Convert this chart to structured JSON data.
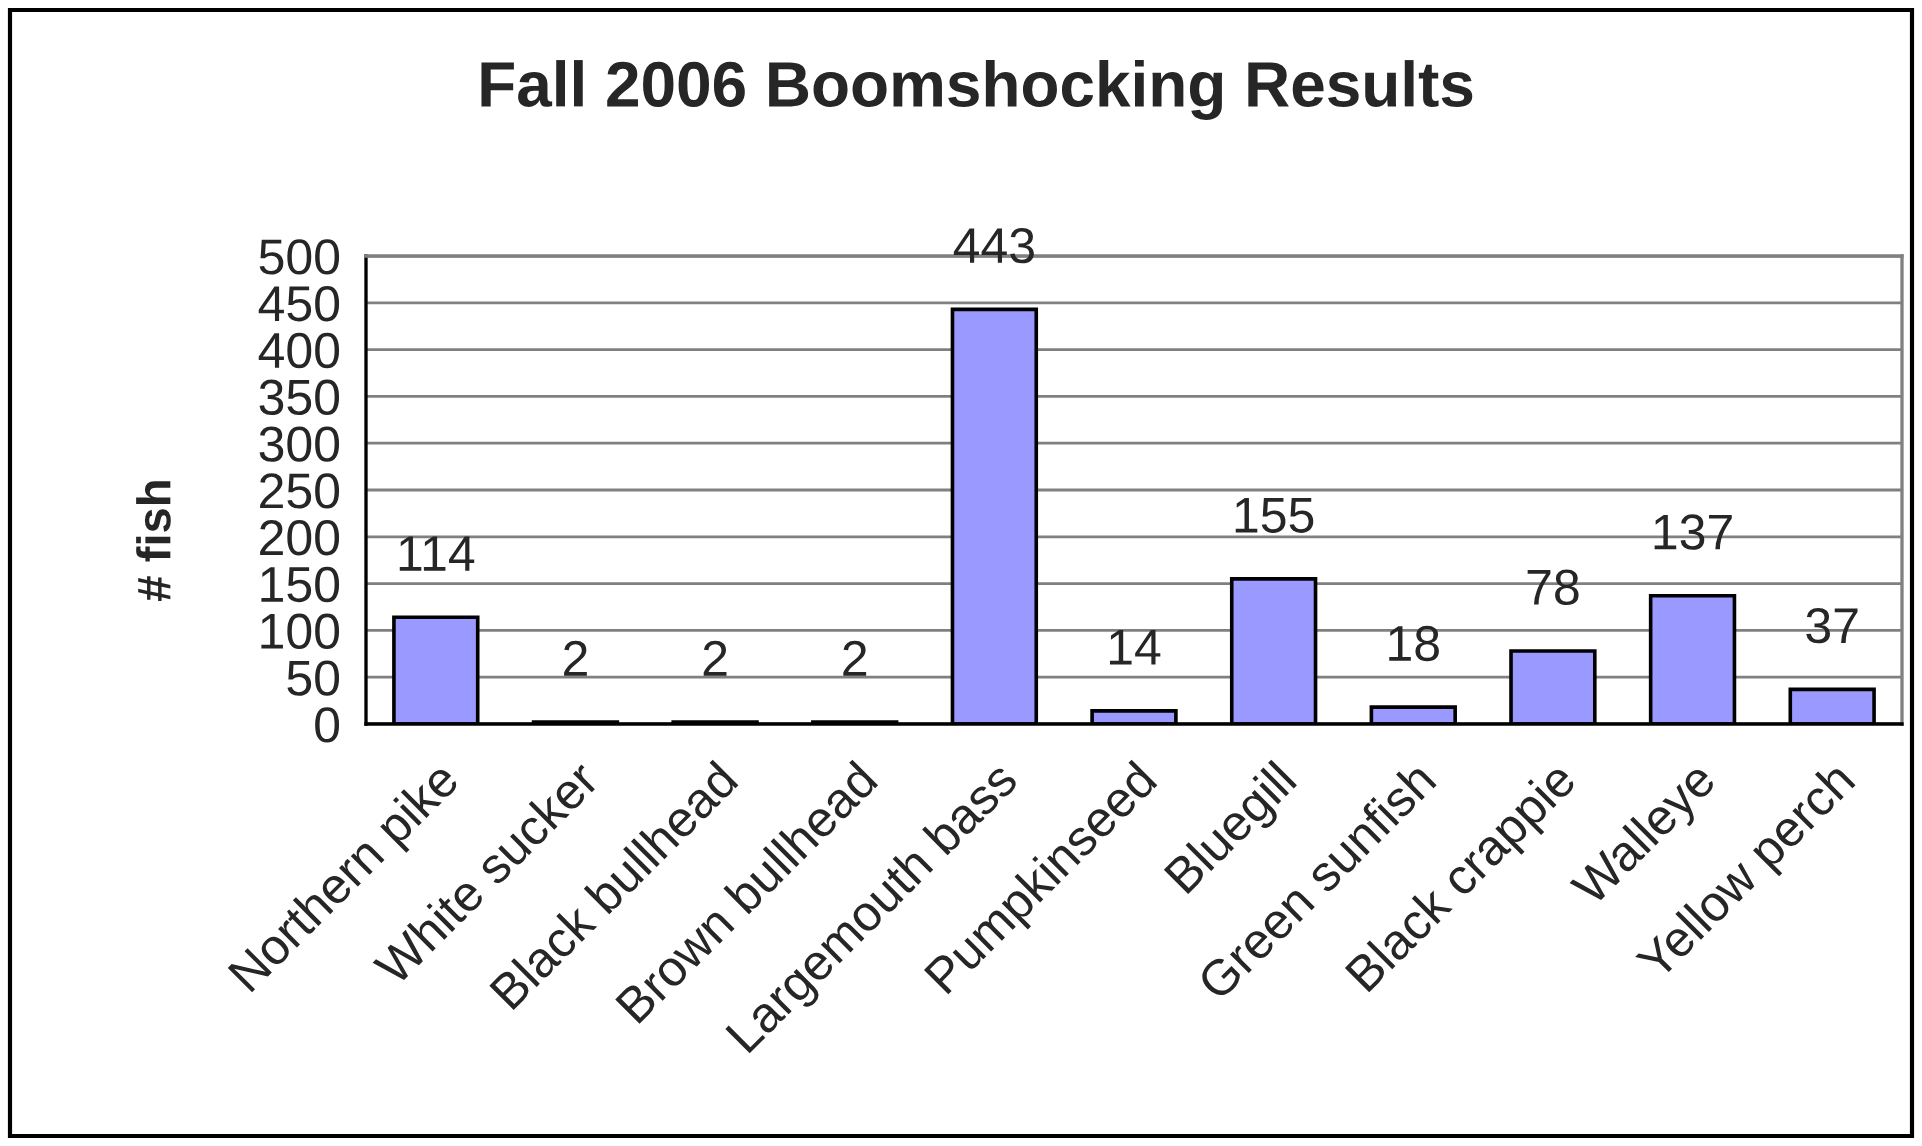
{
  "chart_data": {
    "type": "bar",
    "title": "Fall 2006 Boomshocking Results",
    "ylabel": "# fish",
    "categories": [
      "Northern pike",
      "White sucker",
      "Black bullhead",
      "Brown bullhead",
      "Largemouth bass",
      "Pumpkinseed",
      "Bluegill",
      "Green sunfish",
      "Black crappie",
      "Walleye",
      "Yellow perch"
    ],
    "values": [
      114,
      2,
      2,
      2,
      443,
      14,
      155,
      18,
      78,
      137,
      37
    ],
    "color": "#9999ff",
    "ylim": [
      0,
      500
    ],
    "yticks": [
      0,
      50,
      100,
      150,
      200,
      250,
      300,
      350,
      400,
      450,
      500
    ],
    "grid": "y",
    "data_labels": true
  }
}
